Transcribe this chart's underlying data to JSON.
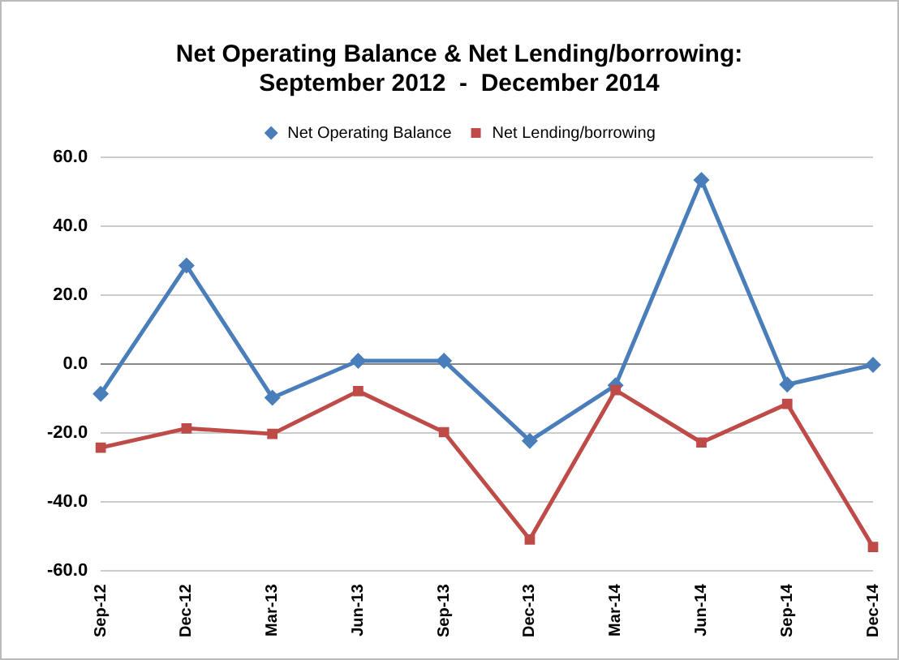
{
  "chart_data": {
    "type": "line",
    "title": "Net Operating Balance & Net Lending/borrowing:\nSeptember 2012  -  December 2014",
    "categories": [
      "Sep-12",
      "Dec-12",
      "Mar-13",
      "Jun-13",
      "Sep-13",
      "Dec-13",
      "Mar-14",
      "Jun-14",
      "Sep-14",
      "Dec-14"
    ],
    "series": [
      {
        "name": "Net Operating Balance",
        "color": "#4a7ebb",
        "marker": "diamond",
        "values": [
          -8.6,
          28.6,
          -9.7,
          1.0,
          1.0,
          -22.2,
          -6.1,
          53.4,
          -5.9,
          -0.2
        ]
      },
      {
        "name": "Net Lending/borrowing",
        "color": "#be4b48",
        "marker": "square",
        "values": [
          -24.2,
          -18.6,
          -20.2,
          -7.8,
          -19.7,
          -50.8,
          -7.5,
          -22.7,
          -11.5,
          -53.0
        ]
      }
    ],
    "ylim": [
      -60,
      60
    ],
    "yticks": [
      {
        "value": -60,
        "label": "-60.0"
      },
      {
        "value": -40,
        "label": "-40.0"
      },
      {
        "value": -20,
        "label": "-20.0"
      },
      {
        "value": 0,
        "label": "0.0"
      },
      {
        "value": 20,
        "label": "20.0"
      },
      {
        "value": 40,
        "label": "40.0"
      },
      {
        "value": 60,
        "label": "60.0"
      }
    ],
    "grid": "y",
    "legend": "top",
    "line_style": "solid"
  }
}
